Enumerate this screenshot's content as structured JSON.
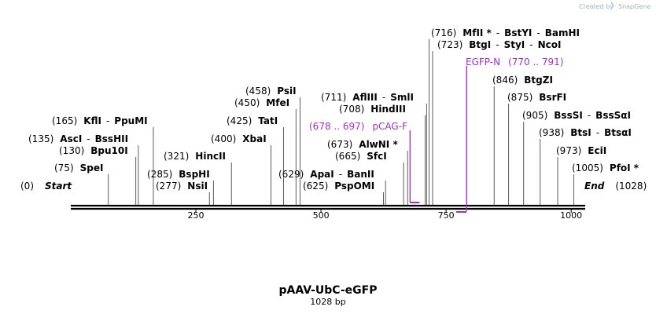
{
  "credit": {
    "text": "Created by",
    "brand": "SnapGene"
  },
  "plasmid": {
    "name": "pAAV-UbC-eGFP",
    "length_label": "1028 bp",
    "length": 1028
  },
  "ends": {
    "start": {
      "pos_label": "(0)",
      "name": "Start"
    },
    "end": {
      "pos_label": "(1028)",
      "name": "End"
    }
  },
  "scale_ticks": [
    {
      "value": 250,
      "label": "250"
    },
    {
      "value": 500,
      "label": "500"
    },
    {
      "value": 750,
      "label": "750"
    },
    {
      "value": 1000,
      "label": "1000"
    }
  ],
  "sites": [
    {
      "pos": 75,
      "pos_label": "(75)",
      "names": [
        "SpeI"
      ]
    },
    {
      "pos": 130,
      "pos_label": "(130)",
      "names": [
        "Bpu10I"
      ]
    },
    {
      "pos": 135,
      "pos_label": "(135)",
      "names": [
        "AscI",
        "BssHII"
      ]
    },
    {
      "pos": 165,
      "pos_label": "(165)",
      "names": [
        "KflI",
        "PpuMI"
      ]
    },
    {
      "pos": 277,
      "pos_label": "(277)",
      "names": [
        "NsiI"
      ]
    },
    {
      "pos": 285,
      "pos_label": "(285)",
      "names": [
        "BspHI"
      ]
    },
    {
      "pos": 321,
      "pos_label": "(321)",
      "names": [
        "HincII"
      ]
    },
    {
      "pos": 400,
      "pos_label": "(400)",
      "names": [
        "XbaI"
      ]
    },
    {
      "pos": 425,
      "pos_label": "(425)",
      "names": [
        "TatI"
      ]
    },
    {
      "pos": 450,
      "pos_label": "(450)",
      "names": [
        "MfeI"
      ]
    },
    {
      "pos": 458,
      "pos_label": "(458)",
      "names": [
        "PsiI"
      ]
    },
    {
      "pos": 625,
      "pos_label": "(625)",
      "names": [
        "PspOMI"
      ]
    },
    {
      "pos": 629,
      "pos_label": "(629)",
      "names": [
        "ApaI",
        "BanII"
      ]
    },
    {
      "pos": 665,
      "pos_label": "(665)",
      "names": [
        "SfcI"
      ]
    },
    {
      "pos": 673,
      "pos_label": "(673)",
      "names": [
        "AlwNI *"
      ]
    },
    {
      "pos": 708,
      "pos_label": "(708)",
      "names": [
        "HindIII"
      ]
    },
    {
      "pos": 711,
      "pos_label": "(711)",
      "names": [
        "AflIII",
        "SmlI"
      ]
    },
    {
      "pos": 716,
      "pos_label": "(716)",
      "names": [
        "MfII *",
        "BstYI",
        "BamHI"
      ]
    },
    {
      "pos": 723,
      "pos_label": "(723)",
      "names": [
        "BtgI",
        "StyI",
        "NcoI"
      ]
    },
    {
      "pos": 846,
      "pos_label": "(846)",
      "names": [
        "BtgZI"
      ]
    },
    {
      "pos": 875,
      "pos_label": "(875)",
      "names": [
        "BsrFI"
      ]
    },
    {
      "pos": 905,
      "pos_label": "(905)",
      "names": [
        "BssSI",
        "BssSαI"
      ]
    },
    {
      "pos": 938,
      "pos_label": "(938)",
      "names": [
        "BtsI",
        "BtsαI"
      ]
    },
    {
      "pos": 973,
      "pos_label": "(973)",
      "names": [
        "EciI"
      ]
    },
    {
      "pos": 1005,
      "pos_label": "(1005)",
      "names": [
        "PfoI *"
      ]
    }
  ],
  "features": [
    {
      "name": "pCAG-F",
      "range_label": "(678 .. 697)",
      "start": 678,
      "end": 697,
      "strand": "forward",
      "color": "#a032c8"
    },
    {
      "name": "EGFP-N",
      "range_label": "(770 .. 791)",
      "start": 770,
      "end": 791,
      "strand": "reverse",
      "color": "#a032c8"
    }
  ]
}
